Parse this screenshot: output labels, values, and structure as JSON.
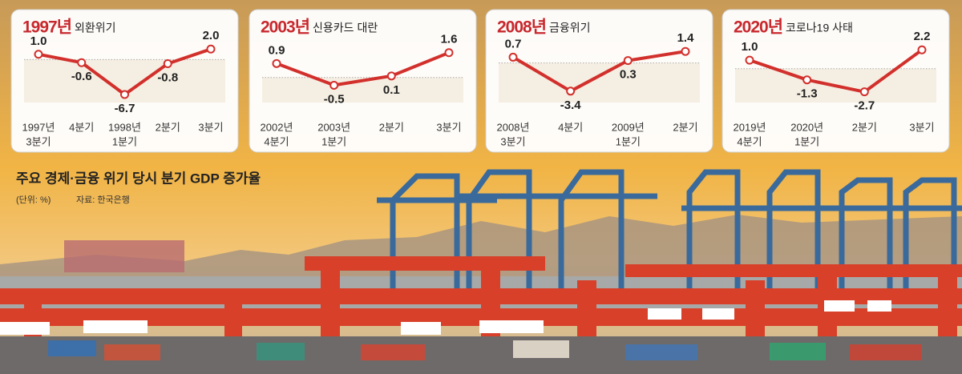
{
  "title": "주요 경제·금융 위기 당시 분기 GDP 증가율",
  "unit": "(단위: %)",
  "source": "자료: 한국은행",
  "chart_data": [
    {
      "type": "line",
      "title": "1997년",
      "subtitle": "외환위기",
      "categories": [
        [
          "1997년",
          "3분기"
        ],
        [
          "4분기"
        ],
        [
          "1998년",
          "1분기"
        ],
        [
          "2분기"
        ],
        [
          "3분기"
        ]
      ],
      "values": [
        1.0,
        -0.6,
        -6.7,
        -0.8,
        2.0
      ],
      "value_labels": [
        "1.0",
        "-0.6",
        "-6.7",
        "-0.8",
        "2.0"
      ],
      "ylim": [
        -7,
        2.5
      ],
      "color": "#d2302c"
    },
    {
      "type": "line",
      "title": "2003년",
      "subtitle": "신용카드 대란",
      "categories": [
        [
          "2002년",
          "4분기"
        ],
        [
          "2003년",
          "1분기"
        ],
        [
          "2분기"
        ],
        [
          "3분기"
        ]
      ],
      "values": [
        0.9,
        -0.5,
        0.1,
        1.6
      ],
      "value_labels": [
        "0.9",
        "-0.5",
        "0.1",
        "1.6"
      ],
      "ylim": [
        -1.2,
        2.0
      ],
      "color": "#d2302c"
    },
    {
      "type": "line",
      "title": "2008년",
      "subtitle": "금융위기",
      "categories": [
        [
          "2008년",
          "3분기"
        ],
        [
          "4분기"
        ],
        [
          "2009년",
          "1분기"
        ],
        [
          "2분기"
        ]
      ],
      "values": [
        0.7,
        -3.4,
        0.3,
        1.4
      ],
      "value_labels": [
        "0.7",
        "-3.4",
        "0.3",
        "1.4"
      ],
      "ylim": [
        -4,
        2
      ],
      "color": "#d2302c"
    },
    {
      "type": "line",
      "title": "2020년",
      "subtitle": "코로나19 사태",
      "categories": [
        [
          "2019년",
          "4분기"
        ],
        [
          "2020년",
          "1분기"
        ],
        [
          "2분기"
        ],
        [
          "3분기"
        ]
      ],
      "values": [
        1.0,
        -1.3,
        -2.7,
        2.2
      ],
      "value_labels": [
        "1.0",
        "-1.3",
        "-2.7",
        "2.2"
      ],
      "ylim": [
        -3.2,
        2.6
      ],
      "color": "#d2302c"
    }
  ]
}
